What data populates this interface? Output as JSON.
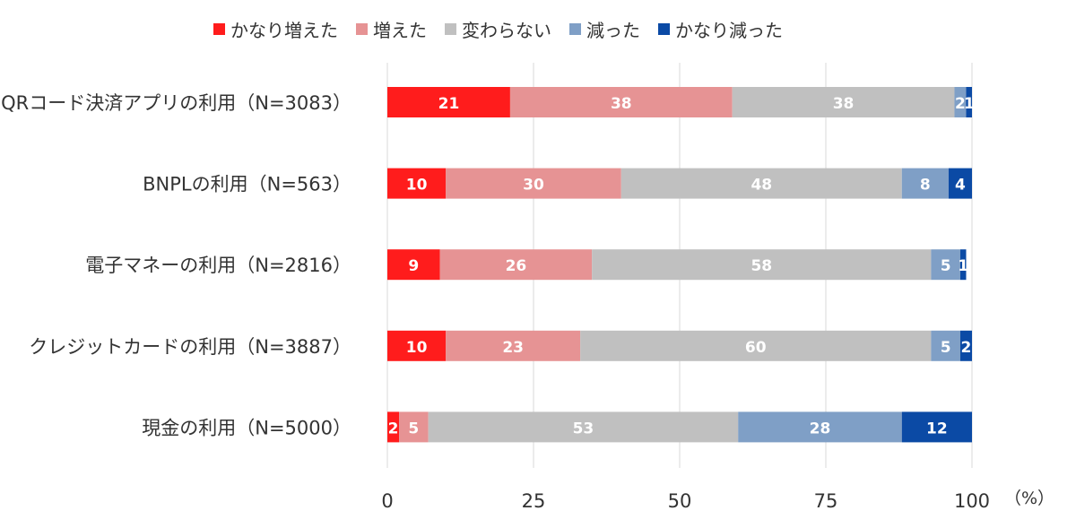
{
  "chart_data": {
    "type": "bar",
    "orientation": "horizontal",
    "stacked": true,
    "categories": [
      "QRコード決済アプリの利用（N=3083）",
      "BNPLの利用（N=563）",
      "電子マネーの利用（N=2816）",
      "クレジットカードの利用（N=3887）",
      "現金の利用（N=5000）"
    ],
    "series": [
      {
        "name": "かなり増えた",
        "color": "#ff1c1c",
        "values": [
          21,
          10,
          9,
          10,
          2
        ]
      },
      {
        "name": "増えた",
        "color": "#e69394",
        "values": [
          38,
          30,
          26,
          23,
          5
        ]
      },
      {
        "name": "変わらない",
        "color": "#c0c0c0",
        "values": [
          38,
          48,
          58,
          60,
          53
        ]
      },
      {
        "name": "減った",
        "color": "#7f9fc6",
        "values": [
          2,
          8,
          5,
          5,
          28
        ]
      },
      {
        "name": "かなり減った",
        "color": "#0b4aa5",
        "values": [
          1,
          4,
          1,
          2,
          12
        ]
      }
    ],
    "xlim": [
      0,
      100
    ],
    "xticks": [
      "0",
      "25",
      "50",
      "75",
      "100"
    ],
    "unit_label": "（%）",
    "grid": true,
    "legend_position": "top"
  }
}
